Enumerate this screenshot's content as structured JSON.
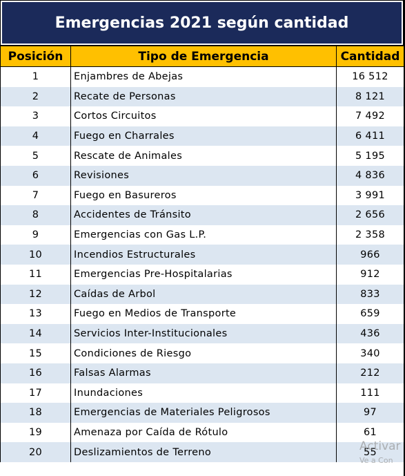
{
  "title": "Emergencias 2021 según cantidad",
  "table": {
    "headers": [
      "Posición",
      "Tipo de Emergencia",
      "Cantidad"
    ],
    "rows": [
      [
        "1",
        "Enjambres de Abejas",
        "16 512"
      ],
      [
        "2",
        "Recate de Personas",
        "8 121"
      ],
      [
        "3",
        "Cortos Circuitos",
        "7 492"
      ],
      [
        "4",
        "Fuego en Charrales",
        "6 411"
      ],
      [
        "5",
        "Rescate de Animales",
        "5 195"
      ],
      [
        "6",
        "Revisiones",
        "4 836"
      ],
      [
        "7",
        "Fuego en Basureros",
        "3 991"
      ],
      [
        "8",
        "Accidentes de Tránsito",
        "2 656"
      ],
      [
        "9",
        "Emergencias con Gas L.P.",
        "2 358"
      ],
      [
        "10",
        "Incendios Estructurales",
        "966"
      ],
      [
        "11",
        "Emergencias Pre-Hospitalarias",
        "912"
      ],
      [
        "12",
        "Caídas de Arbol",
        "833"
      ],
      [
        "13",
        "Fuego en Medios de Transporte",
        "659"
      ],
      [
        "14",
        "Servicios Inter-Institucionales",
        "436"
      ],
      [
        "15",
        "Condiciones de Riesgo",
        "340"
      ],
      [
        "16",
        "Falsas Alarmas",
        "212"
      ],
      [
        "17",
        "Inundaciones",
        "111"
      ],
      [
        "18",
        "Emergencias de Materiales Peligrosos",
        "97"
      ],
      [
        "19",
        "Amenaza por Caída de Rótulo",
        "61"
      ],
      [
        "20",
        "Deslizamientos de Terreno",
        "55"
      ]
    ]
  },
  "watermark": [
    "Activar",
    "Ve a Con"
  ]
}
